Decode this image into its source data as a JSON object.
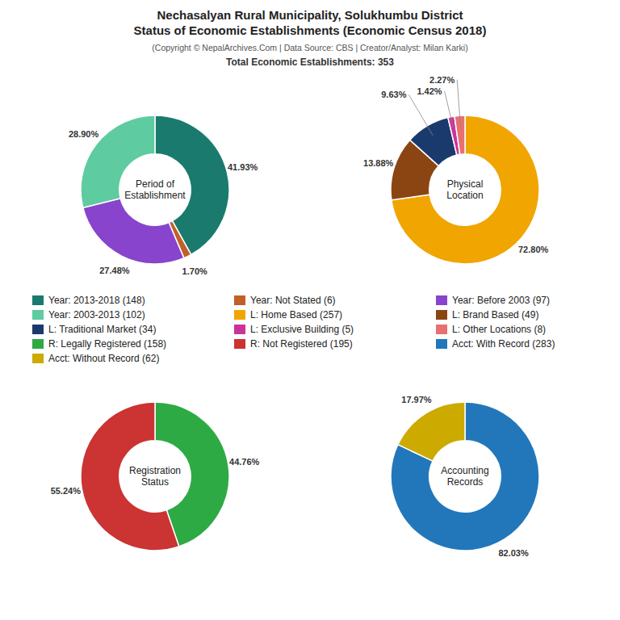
{
  "title": "Nechasalyan Rural Municipality, Solukhumbu District\nStatus of Economic Establishments (Economic Census 2018)",
  "subtitle": "(Copyright © NepalArchives.Com | Data Source: CBS | Creator/Analyst: Milan Karki)",
  "annotations": [
    "Total Economic Establishments: 353"
  ],
  "chart_data": [
    {
      "type": "pie",
      "title": "Period of\nEstablishment",
      "categories": [
        "Year: 2013-2018 (148)",
        "Year: Not Stated (6)",
        "Year: Before 2003 (97)",
        "Year: 2003-2013 (102)"
      ],
      "values": [
        41.93,
        1.7,
        27.48,
        28.9
      ],
      "value_labels": [
        "41.93%",
        "1.70%",
        "27.48%",
        "28.90%"
      ],
      "colors": [
        "#1a7a6e",
        "#c1602a",
        "#8844cc",
        "#5ecba1"
      ],
      "data_labels": true
    },
    {
      "type": "pie",
      "title": "Physical\nLocation",
      "categories": [
        "L: Home Based (257)",
        "L: Brand Based (49)",
        "L: Traditional Market (34)",
        "L: Exclusive Building (5)",
        "L: Other Locations (8)"
      ],
      "values": [
        72.8,
        13.88,
        9.63,
        1.42,
        2.27
      ],
      "value_labels": [
        "72.80%",
        "13.88%",
        "9.63%",
        "1.42%",
        "2.27%"
      ],
      "colors": [
        "#f0a500",
        "#8B4513",
        "#1a3a6e",
        "#cc3399",
        "#e87070"
      ],
      "data_labels": true
    },
    {
      "type": "pie",
      "title": "Registration\nStatus",
      "categories": [
        "R: Legally Registered (158)",
        "R: Not Registered (195)"
      ],
      "values": [
        44.76,
        55.24
      ],
      "value_labels": [
        "44.76%",
        "55.24%"
      ],
      "colors": [
        "#2eaa44",
        "#cc3333"
      ],
      "data_labels": true
    },
    {
      "type": "pie",
      "title": "Accounting\nRecords",
      "categories": [
        "Acct: With Record (283)",
        "Acct: Without Record (62)"
      ],
      "values": [
        82.03,
        17.97
      ],
      "value_labels": [
        "82.03%",
        "17.97%"
      ],
      "colors": [
        "#2277bb",
        "#ccaa00"
      ],
      "data_labels": true
    }
  ]
}
